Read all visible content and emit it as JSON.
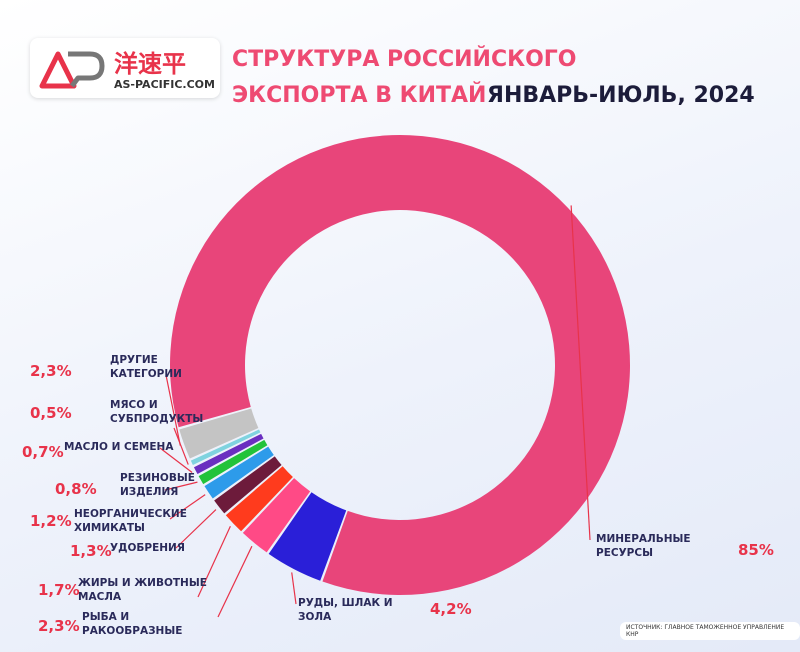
{
  "logo": {
    "brand": "洋速平",
    "site": "AS-PACIFIC.COM"
  },
  "chart_data": {
    "type": "donut",
    "title": "СТРУКТУРА РОССИЙСКОГО ЭКСПОРТА В КИТАЙ",
    "subtitle": "ЯНВАРЬ-ИЮЛЬ, 2024",
    "source": "ИСТОЧНИК: ГЛАВНОЕ ТАМОЖЕННОЕ УПРАВЛЕНИЕ КНР",
    "categories": [
      "МИНЕРАЛЬНЫЕ РЕСУРСЫ",
      "РУДЫ, ШЛАК И ЗОЛА",
      "РЫБА И РАКООБРАЗНЫЕ",
      "ЖИРЫ И ЖИВОТНЫЕ МАСЛА",
      "УДОБРЕНИЯ",
      "НЕОРГАНИЧЕСКИЕ ХИМИКАТЫ",
      "РЕЗИНОВЫЕ ИЗДЕЛИЯ",
      "МАСЛО И СЕМЕНА",
      "МЯСО И СУБПРОДУКТЫ",
      "ДРУГИЕ КАТЕГОРИИ"
    ],
    "values": [
      85,
      4.2,
      2.3,
      1.7,
      1.3,
      1.2,
      0.8,
      0.7,
      0.5,
      2.3
    ],
    "value_labels": [
      "85%",
      "4,2%",
      "2,3%",
      "1,7%",
      "1,3%",
      "1,2%",
      "0,8%",
      "0,7%",
      "0,5%",
      "2,3%"
    ],
    "colors": [
      "#e8457a",
      "#2a1fd8",
      "#ff4a86",
      "#ff3b1d",
      "#6d1b3b",
      "#2d9bea",
      "#22c33a",
      "#6a2fc0",
      "#7fd3df",
      "#c4c4c4"
    ]
  }
}
